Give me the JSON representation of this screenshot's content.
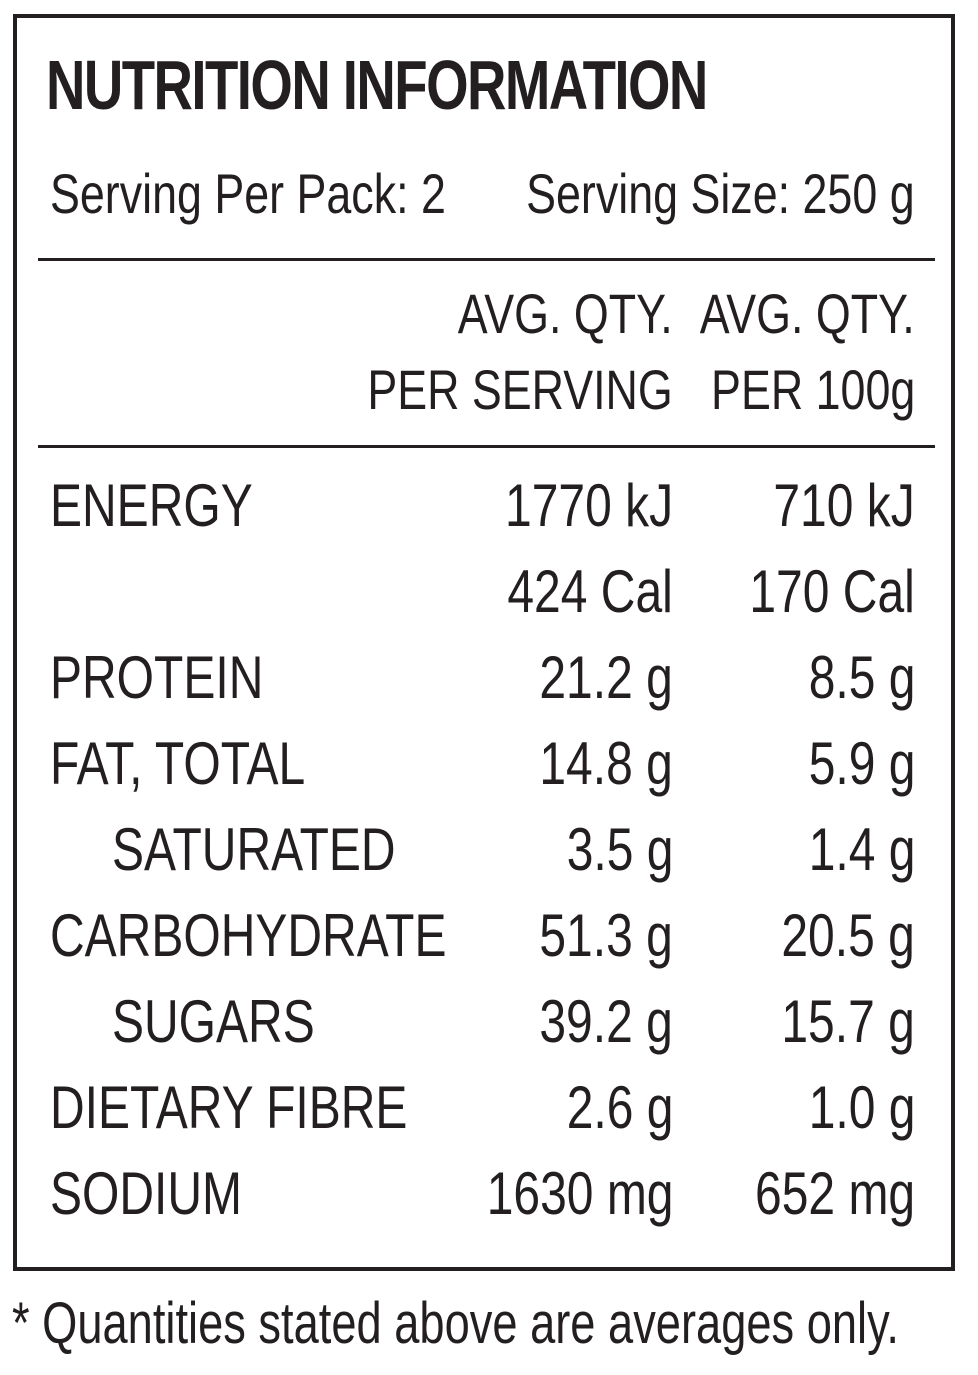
{
  "label": {
    "title": "NUTRITION INFORMATION",
    "servings_per_pack": "Serving Per Pack: 2",
    "serving_size": "Serving Size: 250 g",
    "col_serving_line1": "AVG. QTY.",
    "col_serving_line2": "PER SERVING",
    "col_100g_line1": "AVG. QTY.",
    "col_100g_line2": "PER 100g",
    "rows": [
      {
        "name": "ENERGY",
        "per_serving": "1770 kJ",
        "per_100g": "710 kJ"
      },
      {
        "name": "",
        "per_serving": "424 Cal",
        "per_100g": "170 Cal"
      },
      {
        "name": "PROTEIN",
        "per_serving": "21.2 g",
        "per_100g": "8.5 g"
      },
      {
        "name": "FAT, TOTAL",
        "per_serving": "14.8 g",
        "per_100g": "5.9 g"
      },
      {
        "name": "SATURATED",
        "per_serving": "3.5 g",
        "per_100g": "1.4 g"
      },
      {
        "name": "CARBOHYDRATE",
        "per_serving": "51.3 g",
        "per_100g": "20.5 g"
      },
      {
        "name": "SUGARS",
        "per_serving": "39.2 g",
        "per_100g": "15.7 g"
      },
      {
        "name": "DIETARY FIBRE",
        "per_serving": "2.6 g",
        "per_100g": "1.0 g"
      },
      {
        "name": "SODIUM",
        "per_serving": "1630 mg",
        "per_100g": "652 mg"
      }
    ],
    "footnote": "* Quantities stated above are averages only."
  }
}
